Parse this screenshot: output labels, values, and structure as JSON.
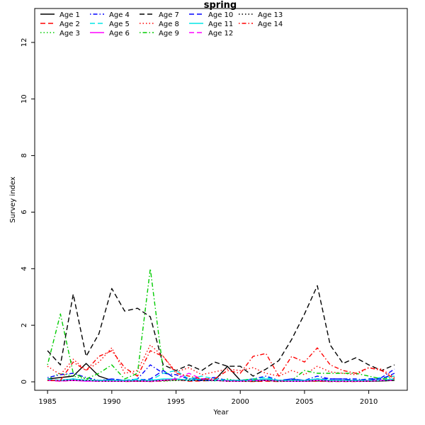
{
  "chart_data": {
    "type": "line",
    "title": "spring",
    "xlabel": "Year",
    "ylabel": "Survey index",
    "xlim": [
      1984,
      2013
    ],
    "ylim": [
      -0.3,
      13.2
    ],
    "xticks": [
      1985,
      1990,
      1995,
      2000,
      2005,
      2010
    ],
    "yticks": [
      0,
      2,
      4,
      6,
      8,
      10,
      12
    ],
    "legend_position": "top-left",
    "x": [
      1985,
      1986,
      1987,
      1988,
      1989,
      1990,
      1991,
      1992,
      1993,
      1994,
      1995,
      1996,
      1997,
      1998,
      1999,
      2000,
      2001,
      2002,
      2003,
      2004,
      2005,
      2006,
      2007,
      2008,
      2009,
      2010,
      2011,
      2012
    ],
    "series": [
      {
        "name": "Age 1",
        "color": "#000000",
        "dash": "solid",
        "values": [
          0.1,
          0.15,
          0.2,
          0.65,
          0.2,
          0.05,
          0.03,
          0.02,
          0.02,
          0.05,
          0.1,
          0.05,
          0.08,
          0.05,
          0.55,
          0.05,
          0.02,
          0.05,
          0.03,
          0.03,
          0.02,
          0.03,
          0.03,
          0.02,
          0.02,
          0.02,
          0.03,
          0.05
        ]
      },
      {
        "name": "Age 2",
        "color": "#ff0000",
        "dash": "longdash",
        "values": [
          0.05,
          0.02,
          0.05,
          0.05,
          0.02,
          0.03,
          0.01,
          0.02,
          0.01,
          0.03,
          0.08,
          0.02,
          0.03,
          0.05,
          0.02,
          0.02,
          0.01,
          0.02,
          0.01,
          0.03,
          0.02,
          0.02,
          0.01,
          0.01,
          0.01,
          0.02,
          0.05,
          0.1
        ]
      },
      {
        "name": "Age 3",
        "color": "#00cc00",
        "dash": "dotted",
        "values": [
          0.1,
          0.3,
          0.2,
          0.1,
          0.05,
          0.05,
          0.02,
          0.03,
          0.05,
          0.02,
          0.05,
          0.1,
          0.05,
          0.03,
          0.1,
          0.02,
          0.03,
          0.05,
          0.01,
          0.03,
          0.02,
          0.03,
          0.01,
          0.02,
          0.02,
          0.05,
          0.1,
          0.2
        ]
      },
      {
        "name": "Age 4",
        "color": "#0000ff",
        "dash": "dotdash",
        "values": [
          0.15,
          0.25,
          0.3,
          0.15,
          0.05,
          0.1,
          0.05,
          0.1,
          0.6,
          0.3,
          0.25,
          0.1,
          0.1,
          0.15,
          0.05,
          0.05,
          0.1,
          0.2,
          0.05,
          0.1,
          0.05,
          0.2,
          0.1,
          0.1,
          0.1,
          0.05,
          0.15,
          0.45
        ]
      },
      {
        "name": "Age 5",
        "color": "#00e5e5",
        "dash": "longdash",
        "values": [
          0.1,
          0.05,
          0.1,
          0.05,
          0.03,
          0.05,
          0.05,
          0.1,
          0.05,
          0.3,
          0.4,
          0.1,
          0.2,
          0.1,
          0.05,
          0.05,
          0.1,
          0.15,
          0.05,
          0.05,
          0.05,
          0.1,
          0.05,
          0.05,
          0.05,
          0.1,
          0.15,
          0.2
        ]
      },
      {
        "name": "Age 6",
        "color": "#ff00ff",
        "dash": "solid",
        "values": [
          0.05,
          0.03,
          0.05,
          0.02,
          0.03,
          0.02,
          0.02,
          0.03,
          0.02,
          0.05,
          0.1,
          0.05,
          0.1,
          0.05,
          0.03,
          0.02,
          0.05,
          0.05,
          0.03,
          0.02,
          0.02,
          0.05,
          0.02,
          0.02,
          0.02,
          0.03,
          0.05,
          0.1
        ]
      },
      {
        "name": "Age 7",
        "color": "#000000",
        "dash": "longdash",
        "values": [
          1.1,
          0.6,
          3.1,
          0.9,
          1.7,
          3.3,
          2.5,
          2.6,
          2.3,
          0.6,
          0.4,
          0.6,
          0.4,
          0.7,
          0.55,
          0.55,
          0.2,
          0.45,
          0.75,
          1.5,
          2.4,
          3.4,
          1.3,
          0.65,
          0.85,
          0.6,
          0.4,
          0.6
        ]
      },
      {
        "name": "Age 8",
        "color": "#ff0000",
        "dash": "dotted",
        "values": [
          0.55,
          0.25,
          0.8,
          0.4,
          0.7,
          1.2,
          0.3,
          0.4,
          1.3,
          0.9,
          0.35,
          0.5,
          0.25,
          0.35,
          0.45,
          0.4,
          0.5,
          0.3,
          0.2,
          0.4,
          0.25,
          0.55,
          0.35,
          0.3,
          0.25,
          0.5,
          0.45,
          0.15
        ]
      },
      {
        "name": "Age 9",
        "color": "#00cc00",
        "dash": "dotdash",
        "values": [
          0.6,
          2.4,
          0.3,
          0.1,
          0.3,
          0.6,
          0.1,
          0.3,
          4.0,
          0.4,
          0.1,
          0.05,
          0.1,
          0.05,
          0.05,
          0.05,
          0.1,
          0.05,
          0.05,
          0.05,
          0.4,
          0.3,
          0.3,
          0.3,
          0.3,
          0.2,
          0.1,
          0.1
        ]
      },
      {
        "name": "Age 10",
        "color": "#0000ff",
        "dash": "longdash",
        "values": [
          0.05,
          0.05,
          0.1,
          0.05,
          0.02,
          0.1,
          0.05,
          0.05,
          0.1,
          0.4,
          0.1,
          0.05,
          0.05,
          0.05,
          0.05,
          0.05,
          0.05,
          0.1,
          0.05,
          0.1,
          0.05,
          0.1,
          0.1,
          0.1,
          0.05,
          0.1,
          0.1,
          0.3
        ]
      },
      {
        "name": "Age 11",
        "color": "#00e5e5",
        "dash": "solid",
        "values": [
          0.05,
          0.05,
          0.1,
          0.05,
          0.05,
          0.05,
          0.05,
          0.05,
          0.05,
          0.1,
          0.1,
          0.05,
          0.1,
          0.05,
          0.05,
          0.05,
          0.05,
          0.1,
          0.05,
          0.05,
          0.05,
          0.1,
          0.05,
          0.05,
          0.05,
          0.05,
          0.05,
          0.1
        ]
      },
      {
        "name": "Age 12",
        "color": "#ff00ff",
        "dash": "longdash",
        "values": [
          0.05,
          0.03,
          0.05,
          0.03,
          0.02,
          0.02,
          0.02,
          0.03,
          0.02,
          0.05,
          0.1,
          0.3,
          0.1,
          0.05,
          0.03,
          0.02,
          0.05,
          0.05,
          0.03,
          0.02,
          0.02,
          0.05,
          0.02,
          0.02,
          0.02,
          0.03,
          0.05,
          0.05
        ]
      },
      {
        "name": "Age 13",
        "color": "#000000",
        "dash": "dotted",
        "values": [
          0.05,
          0.05,
          0.05,
          0.05,
          0.02,
          0.02,
          0.02,
          0.03,
          0.02,
          0.05,
          0.05,
          0.05,
          0.05,
          0.05,
          0.02,
          0.02,
          0.02,
          0.05,
          0.02,
          0.02,
          0.02,
          0.05,
          0.02,
          0.02,
          0.02,
          0.02,
          0.03,
          0.05
        ]
      },
      {
        "name": "Age 14",
        "color": "#ff0000",
        "dash": "dotdash",
        "values": [
          0.05,
          0.05,
          0.7,
          0.4,
          0.9,
          1.1,
          0.5,
          0.2,
          1.1,
          0.9,
          0.3,
          0.2,
          0.1,
          0.1,
          0.4,
          0.3,
          0.9,
          1.0,
          0.2,
          0.9,
          0.7,
          1.2,
          0.6,
          0.4,
          0.3,
          0.5,
          0.4,
          0.1
        ]
      }
    ]
  }
}
